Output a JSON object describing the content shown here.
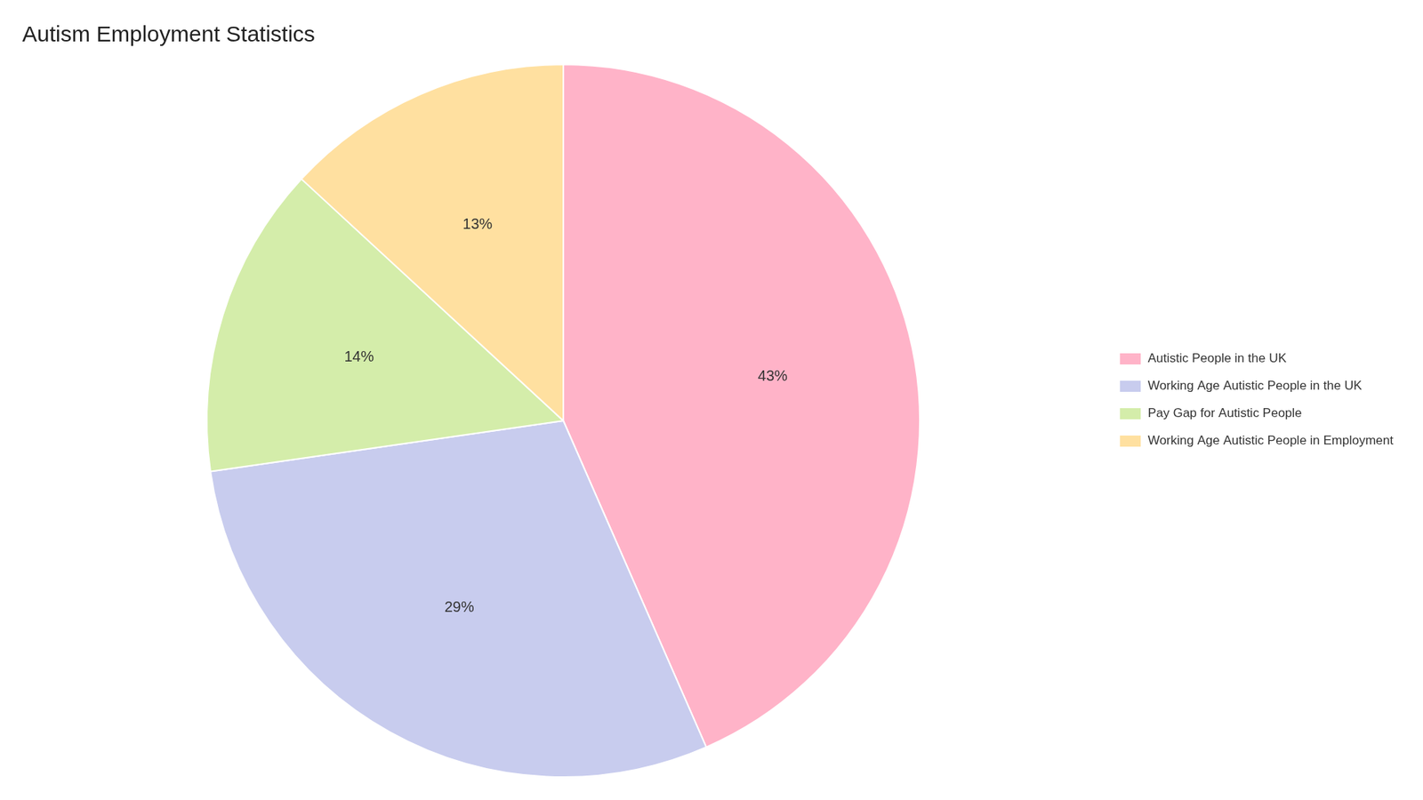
{
  "chart_data": {
    "type": "pie",
    "title": "Autism Employment Statistics",
    "categories": [
      "Autistic People in the UK",
      "Working Age Autistic People in the UK",
      "Pay Gap for Autistic People",
      "Working Age Autistic People in Employment"
    ],
    "values": [
      43,
      29,
      14,
      13
    ],
    "value_labels": [
      "43%",
      "29%",
      "14%",
      "13%"
    ],
    "colors": [
      "#FFB3C8",
      "#C8CCEE",
      "#D4EDAA",
      "#FFE0A0"
    ],
    "data_labels": true,
    "legend": "right"
  }
}
